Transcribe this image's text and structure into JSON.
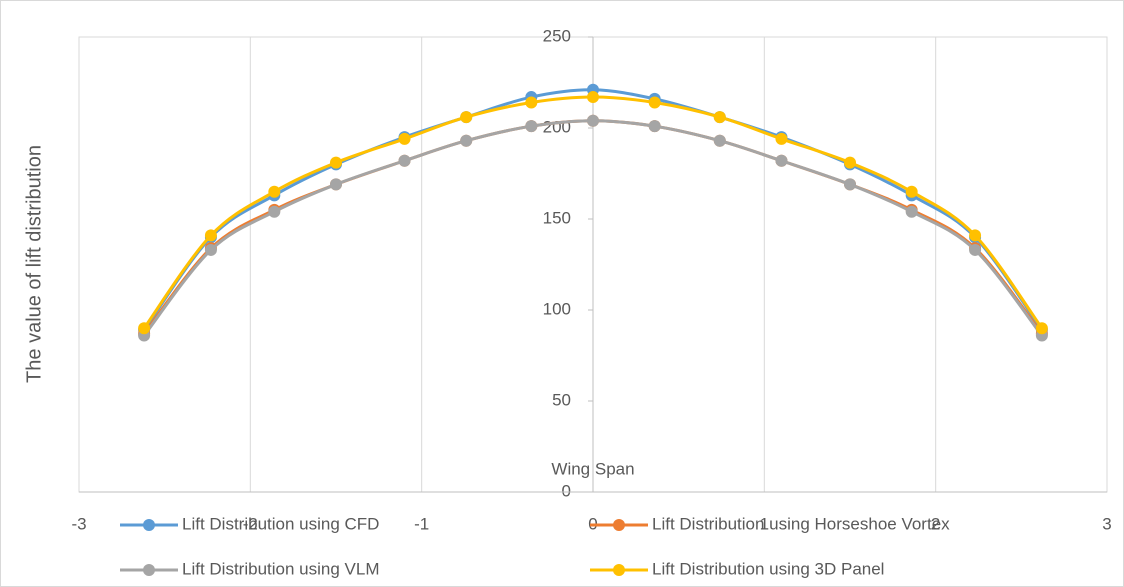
{
  "chart_data": {
    "type": "line",
    "x_label": "Wing Span",
    "y_label": "The value of lift distribution",
    "x": [
      -2.62,
      -2.23,
      -1.86,
      -1.5,
      -1.1,
      -0.74,
      -0.36,
      0,
      0.36,
      0.74,
      1.1,
      1.5,
      1.86,
      2.23,
      2.62
    ],
    "series": [
      {
        "name": "Lift Distribution using CFD",
        "color": "#5b9bd5",
        "values": [
          89,
          140,
          163,
          180,
          195,
          206,
          217,
          221,
          216,
          206,
          195,
          180,
          163,
          140,
          89
        ]
      },
      {
        "name": "Lift Distribution using Horseshoe Vortex",
        "color": "#ed7d31",
        "values": [
          87,
          134,
          155,
          169,
          182,
          193,
          201,
          204,
          201,
          193,
          182,
          169,
          155,
          134,
          87
        ]
      },
      {
        "name": "Lift Distribution using VLM",
        "color": "#a5a5a5",
        "values": [
          86,
          133,
          154,
          169,
          182,
          193,
          201,
          204,
          201,
          193,
          182,
          169,
          154,
          133,
          86
        ]
      },
      {
        "name": "Lift Distribution using 3D Panel",
        "color": "#ffc000",
        "values": [
          90,
          141,
          165,
          181,
          194,
          206,
          214,
          217,
          214,
          206,
          194,
          181,
          165,
          141,
          90
        ]
      }
    ],
    "xlim": [
      -3,
      3
    ],
    "xticks": [
      -3,
      -2,
      -1,
      0,
      1,
      2,
      3
    ],
    "ylim": [
      0,
      250
    ],
    "yticks": [
      0,
      50,
      100,
      150,
      200,
      250
    ],
    "grid": true
  }
}
